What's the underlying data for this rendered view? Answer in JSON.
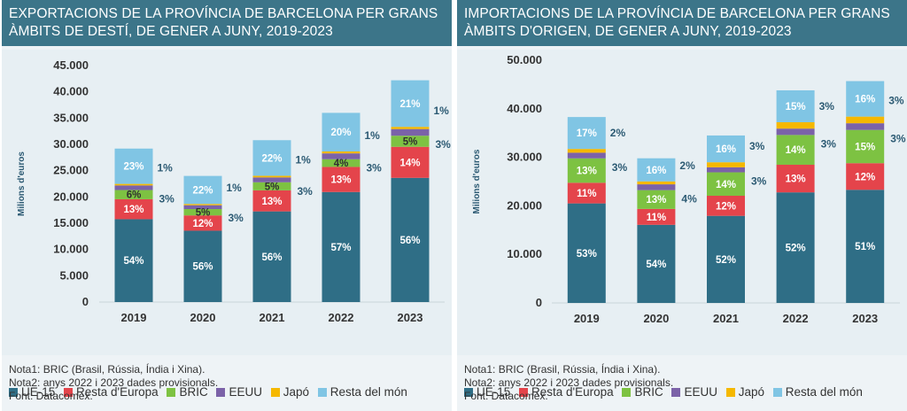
{
  "colors": {
    "UE-15": "#2f6e86",
    "Resta d'Europa": "#e4444b",
    "BRIC": "#7dc242",
    "EEUU": "#7b62a8",
    "Japó": "#f5b800",
    "Resta del món": "#80c5e4"
  },
  "chart_data": [
    {
      "type": "bar",
      "stacked": true,
      "title": "EXPORTACIONS DE LA PROVÍNCIA DE BARCELONA PER GRANS\nÀMBITS DE DESTÍ,  DE GENER A JUNY, 2019-2023",
      "ylabel": "Milions d'euros",
      "ylim": [
        0,
        45000
      ],
      "yticks": [
        "45.000",
        "40.000",
        "35.000",
        "30.000",
        "25.000",
        "20.000",
        "15.000",
        "10.000",
        "5.000",
        "0"
      ],
      "categories": [
        "2019",
        "2020",
        "2021",
        "2022",
        "2023"
      ],
      "totals": [
        29200,
        24000,
        30800,
        36000,
        42200
      ],
      "series": [
        {
          "name": "UE-15",
          "shares": [
            54,
            56,
            56,
            57,
            56
          ],
          "labels": [
            "54%",
            "56%",
            "56%",
            "57%",
            "56%"
          ]
        },
        {
          "name": "Resta d'Europa",
          "shares": [
            13,
            12,
            13,
            13,
            14
          ],
          "labels": [
            "13%",
            "12%",
            "13%",
            "13%",
            "14%"
          ]
        },
        {
          "name": "BRIC",
          "shares": [
            6,
            5,
            5,
            4,
            5
          ],
          "labels": [
            "6%",
            "5%",
            "5%",
            "4%",
            "5%"
          ]
        },
        {
          "name": "EEUU",
          "shares": [
            3,
            3,
            3,
            3,
            3
          ],
          "labels": [
            "3%",
            "3%",
            "3%",
            "3%",
            "3%"
          ]
        },
        {
          "name": "Japó",
          "shares": [
            1,
            1,
            1,
            1,
            1
          ],
          "labels": [
            "1%",
            "1%",
            "1%",
            "1%",
            "1%"
          ]
        },
        {
          "name": "Resta del món",
          "shares": [
            23,
            22,
            22,
            20,
            21
          ],
          "labels": [
            "23%",
            "22%",
            "22%",
            "20%",
            "21%"
          ]
        }
      ]
    },
    {
      "type": "bar",
      "stacked": true,
      "title": "IMPORTACIONS DE LA PROVÍNCIA DE BARCELONA PER GRANS\nÀMBITS D'ORIGEN, DE GENER A JUNY, 2019-2023",
      "ylabel": "Milions d'euros",
      "ylim": [
        0,
        50000
      ],
      "yticks": [
        "50.000",
        "40.000",
        "30.000",
        "20.000",
        "10.000",
        "0"
      ],
      "categories": [
        "2019",
        "2020",
        "2021",
        "2022",
        "2023"
      ],
      "totals": [
        38300,
        29800,
        34500,
        43800,
        45700
      ],
      "series": [
        {
          "name": "UE-15",
          "shares": [
            53,
            54,
            52,
            52,
            51
          ],
          "labels": [
            "53%",
            "54%",
            "52%",
            "52%",
            "51%"
          ]
        },
        {
          "name": "Resta d'Europa",
          "shares": [
            11,
            11,
            12,
            13,
            12
          ],
          "labels": [
            "11%",
            "11%",
            "12%",
            "13%",
            "12%"
          ]
        },
        {
          "name": "BRIC",
          "shares": [
            13,
            13,
            14,
            14,
            15
          ],
          "labels": [
            "13%",
            "13%",
            "14%",
            "14%",
            "15%"
          ]
        },
        {
          "name": "EEUU",
          "shares": [
            3,
            4,
            3,
            3,
            3
          ],
          "labels": [
            "3%",
            "4%",
            "3%",
            "3%",
            "3%"
          ]
        },
        {
          "name": "Japó",
          "shares": [
            2,
            2,
            3,
            3,
            3
          ],
          "labels": [
            "2%",
            "2%",
            "3%",
            "3%",
            "3%"
          ]
        },
        {
          "name": "Resta del món",
          "shares": [
            17,
            16,
            16,
            15,
            16
          ],
          "labels": [
            "17%",
            "16%",
            "16%",
            "15%",
            "16%"
          ]
        }
      ]
    }
  ],
  "legend": [
    "UE-15",
    "Resta d'Europa",
    "BRIC",
    "EEUU",
    "Japó",
    "Resta del món"
  ],
  "notes": [
    [
      "Nota1: BRIC (Brasil, Rússia, Índia i Xina).",
      "Nota2: anys 2022 i 2023 dades provisionals.",
      "Font: Datacomex."
    ],
    [
      "Nota1: BRIC (Brasil, Rússia, Índia i Xina).",
      "Nota2: anys 2022 i 2023 dades provisionals.",
      "Font: Datacomex."
    ]
  ]
}
